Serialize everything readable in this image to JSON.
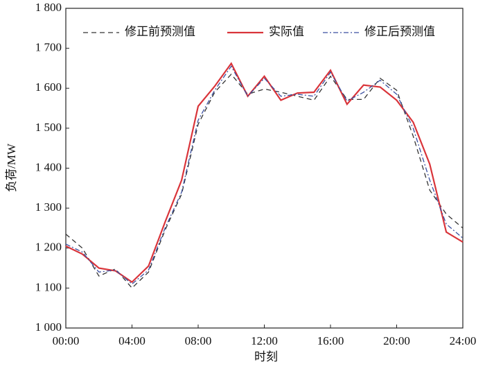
{
  "chart_data": {
    "type": "line",
    "xlabel": "时刻",
    "ylabel": "负荷/MW",
    "x": [
      0,
      1,
      2,
      3,
      4,
      5,
      6,
      7,
      8,
      9,
      10,
      11,
      12,
      13,
      14,
      15,
      16,
      17,
      18,
      19,
      20,
      21,
      22,
      23,
      24
    ],
    "series": [
      {
        "name": "修正前预测值",
        "color": "#333333",
        "linestyle": "dashed",
        "values": [
          1235,
          1200,
          1130,
          1148,
          1100,
          1140,
          1245,
          1335,
          1510,
          1590,
          1635,
          1585,
          1598,
          1590,
          1580,
          1570,
          1630,
          1572,
          1572,
          1625,
          1595,
          1480,
          1345,
          1285,
          1250
        ]
      },
      {
        "name": "实际值",
        "color": "#d9343a",
        "linestyle": "solid",
        "values": [
          1205,
          1185,
          1150,
          1143,
          1115,
          1155,
          1265,
          1370,
          1555,
          1605,
          1662,
          1580,
          1630,
          1570,
          1588,
          1590,
          1645,
          1560,
          1608,
          1603,
          1570,
          1515,
          1410,
          1240,
          1215
        ]
      },
      {
        "name": "修正后预测值",
        "color": "#3a4fa0",
        "linestyle": "dashdot",
        "values": [
          1210,
          1190,
          1140,
          1145,
          1110,
          1145,
          1250,
          1340,
          1520,
          1595,
          1655,
          1580,
          1625,
          1580,
          1585,
          1580,
          1640,
          1568,
          1590,
          1620,
          1585,
          1500,
          1370,
          1260,
          1225
        ]
      }
    ],
    "xlim": [
      0,
      24
    ],
    "xticks": [
      {
        "value": 0,
        "label": "00:00"
      },
      {
        "value": 4,
        "label": "04:00"
      },
      {
        "value": 8,
        "label": "08:00"
      },
      {
        "value": 12,
        "label": "12:00"
      },
      {
        "value": 16,
        "label": "16:00"
      },
      {
        "value": 20,
        "label": "20:00"
      },
      {
        "value": 24,
        "label": "24:00"
      }
    ],
    "ylim": [
      1000,
      1800
    ],
    "yticks": [
      {
        "value": 1000,
        "label": "1 000"
      },
      {
        "value": 1100,
        "label": "1 100"
      },
      {
        "value": 1200,
        "label": "1 200"
      },
      {
        "value": 1300,
        "label": "1 300"
      },
      {
        "value": 1400,
        "label": "1 400"
      },
      {
        "value": 1500,
        "label": "1 500"
      },
      {
        "value": 1600,
        "label": "1 600"
      },
      {
        "value": 1700,
        "label": "1 700"
      },
      {
        "value": 1800,
        "label": "1 800"
      }
    ],
    "grid": false,
    "legend": "top"
  }
}
